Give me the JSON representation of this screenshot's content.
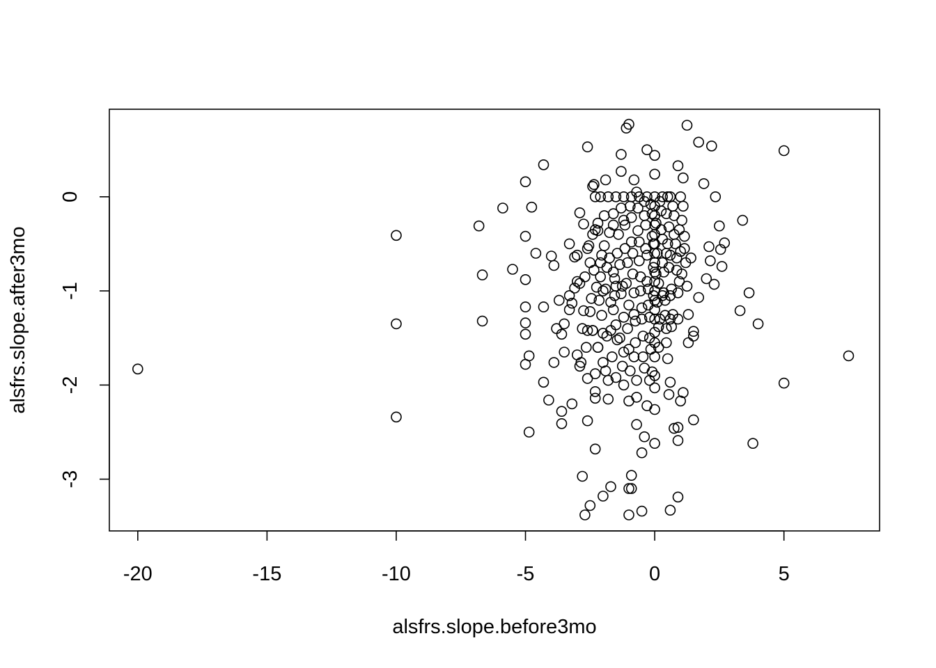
{
  "chart_data": {
    "type": "scatter",
    "title": "",
    "xlabel": "alsfrs.slope.before3mo",
    "ylabel": "alsfrs.slope.after3mo",
    "xlim": [
      -21.1,
      8.7
    ],
    "ylim": [
      -3.55,
      0.93
    ],
    "xticks": [
      -20,
      -15,
      -10,
      -5,
      0,
      5
    ],
    "xtick_labels": [
      "-20",
      "-15",
      "-10",
      "-5",
      "0",
      "5"
    ],
    "yticks": [
      -3,
      -2,
      -1,
      0
    ],
    "ytick_labels": [
      "-3",
      "-2",
      "-1",
      "0"
    ],
    "grid": false,
    "legend": "none",
    "marker": "open-circle",
    "color": "#000000",
    "points": [
      [
        -20,
        -1.83
      ],
      [
        -10,
        -0.41
      ],
      [
        -10,
        -1.35
      ],
      [
        -10,
        -2.34
      ],
      [
        -6.8,
        -0.31
      ],
      [
        -6.67,
        -0.83
      ],
      [
        -6.67,
        -1.32
      ],
      [
        -5.88,
        -0.12
      ],
      [
        -5.5,
        -0.77
      ],
      [
        -5,
        0.16
      ],
      [
        -5,
        -0.42
      ],
      [
        -5,
        -0.88
      ],
      [
        -5,
        -1.17
      ],
      [
        -5,
        -1.34
      ],
      [
        -5,
        -1.46
      ],
      [
        -5,
        -1.78
      ],
      [
        -4.86,
        -1.69
      ],
      [
        -4.86,
        -2.5
      ],
      [
        -4.76,
        -0.11
      ],
      [
        -4.6,
        -0.6
      ],
      [
        -4.3,
        0.34
      ],
      [
        -4.3,
        -1.17
      ],
      [
        -4.3,
        -1.97
      ],
      [
        -4.1,
        -2.16
      ],
      [
        -4.0,
        -0.63
      ],
      [
        -3.9,
        -0.73
      ],
      [
        -3.9,
        -1.76
      ],
      [
        -3.8,
        -1.4
      ],
      [
        -3.7,
        -1.1
      ],
      [
        -3.6,
        -1.46
      ],
      [
        -3.6,
        -2.28
      ],
      [
        -3.6,
        -2.41
      ],
      [
        -3.5,
        -1.35
      ],
      [
        -3.5,
        -1.65
      ],
      [
        -3.3,
        -0.5
      ],
      [
        -3.3,
        -1.05
      ],
      [
        -3.2,
        -1.13
      ],
      [
        -3.2,
        -2.2
      ],
      [
        -3.1,
        -0.64
      ],
      [
        -3.0,
        -0.62
      ],
      [
        -3.0,
        -0.9
      ],
      [
        -2.9,
        -0.17
      ],
      [
        -2.9,
        -1.8
      ],
      [
        -2.8,
        -1.4
      ],
      [
        -2.8,
        -2.97
      ],
      [
        -2.7,
        -3.38
      ],
      [
        -2.6,
        0.53
      ],
      [
        -2.6,
        -0.55
      ],
      [
        -2.6,
        -1.93
      ],
      [
        -2.6,
        -2.38
      ],
      [
        -2.5,
        -3.28
      ],
      [
        -2.4,
        0.11
      ],
      [
        -2.4,
        -1.42
      ],
      [
        -2.3,
        -2.07
      ],
      [
        -2.3,
        -2.14
      ],
      [
        -2.3,
        -2.68
      ],
      [
        -2.2,
        -0.36
      ],
      [
        -2.2,
        -1.6
      ],
      [
        -2.1,
        -0.7
      ],
      [
        -2.0,
        -3.18
      ],
      [
        -1.9,
        0.18
      ],
      [
        -1.9,
        -1.85
      ],
      [
        -1.7,
        -3.08
      ],
      [
        -1.6,
        -0.3
      ],
      [
        -1.6,
        -1.2
      ],
      [
        -1.3,
        0.45
      ],
      [
        -1.3,
        0.27
      ],
      [
        -1.2,
        -1.28
      ],
      [
        -1.1,
        0.73
      ],
      [
        -1.0,
        0.77
      ],
      [
        -1.0,
        -2.17
      ],
      [
        -1.0,
        -3.1
      ],
      [
        -1.0,
        -3.38
      ],
      [
        -0.9,
        -2.96
      ],
      [
        -0.9,
        -3.1
      ],
      [
        -0.8,
        0.18
      ],
      [
        -0.7,
        -2.13
      ],
      [
        -0.7,
        -2.42
      ],
      [
        -0.5,
        -2.72
      ],
      [
        -0.5,
        -3.34
      ],
      [
        -0.4,
        -2.55
      ],
      [
        -0.3,
        0.5
      ],
      [
        -0.3,
        -2.22
      ],
      [
        -0.1,
        -1.86
      ],
      [
        0,
        0.44
      ],
      [
        0,
        0.24
      ],
      [
        0,
        -0.8
      ],
      [
        0,
        -1.2
      ],
      [
        0,
        -1.44
      ],
      [
        0,
        -2.03
      ],
      [
        0,
        -2.26
      ],
      [
        0,
        -2.62
      ],
      [
        0.5,
        -1.72
      ],
      [
        0.55,
        -2.1
      ],
      [
        0.6,
        -1.97
      ],
      [
        0.6,
        -3.33
      ],
      [
        0.75,
        -2.46
      ],
      [
        0.9,
        -2.45
      ],
      [
        0.9,
        -2.59
      ],
      [
        0.9,
        -3.19
      ],
      [
        0.9,
        0.33
      ],
      [
        1.0,
        -2.17
      ],
      [
        1.1,
        -2.08
      ],
      [
        1.1,
        0.2
      ],
      [
        1.25,
        0.76
      ],
      [
        1.4,
        -0.65
      ],
      [
        1.5,
        -2.37
      ],
      [
        1.5,
        -1.43
      ],
      [
        1.5,
        -1.48
      ],
      [
        1.7,
        -1.07
      ],
      [
        1.7,
        0.58
      ],
      [
        1.9,
        0.14
      ],
      [
        2.0,
        -0.87
      ],
      [
        2.1,
        -0.53
      ],
      [
        2.15,
        -0.68
      ],
      [
        2.2,
        0.54
      ],
      [
        2.3,
        -0.93
      ],
      [
        2.35,
        0.0
      ],
      [
        2.5,
        -0.31
      ],
      [
        2.55,
        -0.56
      ],
      [
        2.6,
        -0.74
      ],
      [
        2.7,
        -0.49
      ],
      [
        3.3,
        -1.21
      ],
      [
        3.4,
        -0.25
      ],
      [
        3.65,
        -1.02
      ],
      [
        3.8,
        -2.62
      ],
      [
        4.0,
        -1.35
      ],
      [
        5.0,
        0.49
      ],
      [
        5.0,
        -1.98
      ],
      [
        7.5,
        -1.69
      ],
      [
        -3.3,
        -1.2
      ],
      [
        -3.1,
        -0.97
      ],
      [
        -2.9,
        -0.92
      ],
      [
        -2.75,
        -1.21
      ],
      [
        -2.6,
        -1.42
      ],
      [
        -2.5,
        -0.7
      ],
      [
        -2.45,
        -1.08
      ],
      [
        -2.4,
        -1.42
      ],
      [
        -2.35,
        0.13
      ],
      [
        -2.3,
        -0.35
      ],
      [
        -2.25,
        -0.96
      ],
      [
        -2.2,
        -1.6
      ],
      [
        -2.1,
        -0.85
      ],
      [
        -2.05,
        -1.26
      ],
      [
        -2.0,
        -1.76
      ],
      [
        -1.95,
        -0.52
      ],
      [
        -1.9,
        -0.98
      ],
      [
        -1.85,
        -1.48
      ],
      [
        -1.8,
        0.0
      ],
      [
        -1.75,
        -0.65
      ],
      [
        -1.7,
        -1.12
      ],
      [
        -1.65,
        -1.7
      ],
      [
        -1.6,
        -0.18
      ],
      [
        -1.55,
        -0.87
      ],
      [
        -1.5,
        -1.36
      ],
      [
        -1.45,
        -1.52
      ],
      [
        -1.4,
        -0.4
      ],
      [
        -1.35,
        -0.72
      ],
      [
        -1.3,
        -1.03
      ],
      [
        -1.25,
        -1.8
      ],
      [
        -1.2,
        -0.25
      ],
      [
        -1.15,
        -0.55
      ],
      [
        -1.1,
        -0.92
      ],
      [
        -1.05,
        -1.4
      ],
      [
        -1.0,
        -1.62
      ],
      [
        -0.95,
        -0.1
      ],
      [
        -0.9,
        -0.48
      ],
      [
        -0.85,
        -0.82
      ],
      [
        -0.8,
        -1.25
      ],
      [
        -0.75,
        -1.55
      ],
      [
        -0.7,
        0.05
      ],
      [
        -0.65,
        -0.36
      ],
      [
        -0.6,
        -0.68
      ],
      [
        -0.55,
        -1.0
      ],
      [
        -0.5,
        -1.3
      ],
      [
        -0.45,
        -1.7
      ],
      [
        -0.4,
        -0.2
      ],
      [
        -0.35,
        -0.55
      ],
      [
        -0.3,
        -0.9
      ],
      [
        -0.25,
        -1.15
      ],
      [
        -0.2,
        -1.5
      ],
      [
        -0.15,
        -0.08
      ],
      [
        -0.1,
        -0.42
      ],
      [
        -0.05,
        -0.75
      ],
      [
        -0.05,
        -1.05
      ],
      [
        0.05,
        -0.28
      ],
      [
        0.1,
        -0.6
      ],
      [
        0.15,
        -0.92
      ],
      [
        0.2,
        -1.3
      ],
      [
        0.25,
        -0.15
      ],
      [
        0.3,
        -0.45
      ],
      [
        0.35,
        -0.8
      ],
      [
        0.4,
        -1.1
      ],
      [
        0.45,
        -1.4
      ],
      [
        0.5,
        0.0
      ],
      [
        0.55,
        -0.32
      ],
      [
        0.6,
        -0.62
      ],
      [
        0.65,
        -0.98
      ],
      [
        0.7,
        -1.25
      ],
      [
        0.75,
        -0.2
      ],
      [
        0.8,
        -0.5
      ],
      [
        0.85,
        -0.78
      ],
      [
        0.9,
        -1.02
      ],
      [
        0.95,
        -0.35
      ],
      [
        1.0,
        -0.58
      ],
      [
        1.05,
        -0.82
      ],
      [
        1.1,
        -0.1
      ],
      [
        1.15,
        -0.42
      ],
      [
        1.2,
        -0.7
      ],
      [
        1.25,
        -0.95
      ],
      [
        -2.75,
        -0.29
      ],
      [
        -2.7,
        -0.85
      ],
      [
        -2.65,
        -1.6
      ],
      [
        -2.55,
        -0.52
      ],
      [
        -2.5,
        -1.22
      ],
      [
        -2.35,
        -0.78
      ],
      [
        -2.3,
        -1.88
      ],
      [
        -2.2,
        -0.28
      ],
      [
        -2.15,
        -1.1
      ],
      [
        -2.05,
        -0.62
      ],
      [
        -2.0,
        -1.45
      ],
      [
        -1.95,
        -0.2
      ],
      [
        -1.85,
        -0.75
      ],
      [
        -1.8,
        -1.95
      ],
      [
        -1.75,
        -0.38
      ],
      [
        -1.7,
        -1.42
      ],
      [
        -1.6,
        -0.8
      ],
      [
        -1.55,
        -1.05
      ],
      [
        -1.5,
        -1.92
      ],
      [
        -1.45,
        -0.6
      ],
      [
        -1.35,
        -1.5
      ],
      [
        -1.3,
        -0.12
      ],
      [
        -1.25,
        -0.95
      ],
      [
        -1.2,
        -1.65
      ],
      [
        -1.15,
        -0.3
      ],
      [
        -1.05,
        -0.7
      ],
      [
        -1.0,
        -1.15
      ],
      [
        -0.95,
        -1.85
      ],
      [
        -0.9,
        -0.22
      ],
      [
        -0.85,
        -0.6
      ],
      [
        -0.8,
        -1.02
      ],
      [
        -0.75,
        -1.32
      ],
      [
        -0.7,
        -1.95
      ],
      [
        -0.65,
        -0.12
      ],
      [
        -0.6,
        -0.48
      ],
      [
        -0.55,
        -0.85
      ],
      [
        -0.5,
        -1.18
      ],
      [
        -0.45,
        -1.48
      ],
      [
        -0.4,
        -0.05
      ],
      [
        -0.35,
        -0.3
      ],
      [
        -0.3,
        -0.62
      ],
      [
        -0.25,
        -0.98
      ],
      [
        -0.2,
        -1.28
      ],
      [
        -0.15,
        -1.62
      ],
      [
        -0.1,
        -0.18
      ],
      [
        -0.05,
        -0.5
      ],
      [
        0.05,
        -0.82
      ],
      [
        0.1,
        -1.12
      ],
      [
        0.15,
        -1.38
      ],
      [
        0.2,
        -0.05
      ],
      [
        0.25,
        -0.35
      ],
      [
        0.3,
        -0.7
      ],
      [
        0.35,
        -1.02
      ],
      [
        0.4,
        -1.26
      ],
      [
        0.45,
        -0.18
      ],
      [
        0.5,
        -0.5
      ],
      [
        0.55,
        -0.75
      ],
      [
        0.6,
        -1.05
      ],
      [
        0.65,
        -1.38
      ],
      [
        0.7,
        -0.1
      ],
      [
        0.75,
        -0.4
      ],
      [
        0.85,
        -0.65
      ],
      [
        0.95,
        -0.9
      ],
      [
        1.05,
        -0.25
      ],
      [
        1.15,
        -0.55
      ],
      [
        0,
        0.0
      ],
      [
        0,
        -0.1
      ],
      [
        0,
        -0.2
      ],
      [
        0,
        -0.3
      ],
      [
        0,
        -0.4
      ],
      [
        0,
        -0.5
      ],
      [
        0,
        -0.6
      ],
      [
        0,
        -0.7
      ],
      [
        0,
        -0.9
      ],
      [
        0,
        -1.0
      ],
      [
        0,
        -1.1
      ],
      [
        0,
        -1.3
      ],
      [
        0,
        -1.55
      ],
      [
        0,
        -1.7
      ],
      [
        0,
        -1.9
      ],
      [
        -0.6,
        0.0
      ],
      [
        -1.2,
        0.0
      ],
      [
        -0.9,
        0.0
      ],
      [
        -0.3,
        0.0
      ],
      [
        0.3,
        0.0
      ],
      [
        0.6,
        0.0
      ],
      [
        -1.5,
        0.0
      ],
      [
        -2.1,
        0.0
      ],
      [
        1.0,
        0.0
      ],
      [
        -2.3,
        0.0
      ],
      [
        -3.0,
        -1.68
      ],
      [
        -2.85,
        -1.76
      ],
      [
        -2.4,
        -0.4
      ],
      [
        -2.0,
        -1.0
      ],
      [
        -1.8,
        -2.15
      ],
      [
        -1.5,
        -0.95
      ],
      [
        -1.2,
        -2.0
      ],
      [
        -0.8,
        -1.7
      ],
      [
        -0.4,
        -1.82
      ],
      [
        -0.2,
        -1.95
      ],
      [
        0.15,
        -1.6
      ],
      [
        0.3,
        -1.05
      ],
      [
        0.45,
        -0.6
      ],
      [
        0.6,
        -1.3
      ],
      [
        1.3,
        -1.55
      ],
      [
        1.3,
        -1.25
      ],
      [
        0.9,
        -1.3
      ],
      [
        0.45,
        -1.55
      ]
    ]
  }
}
